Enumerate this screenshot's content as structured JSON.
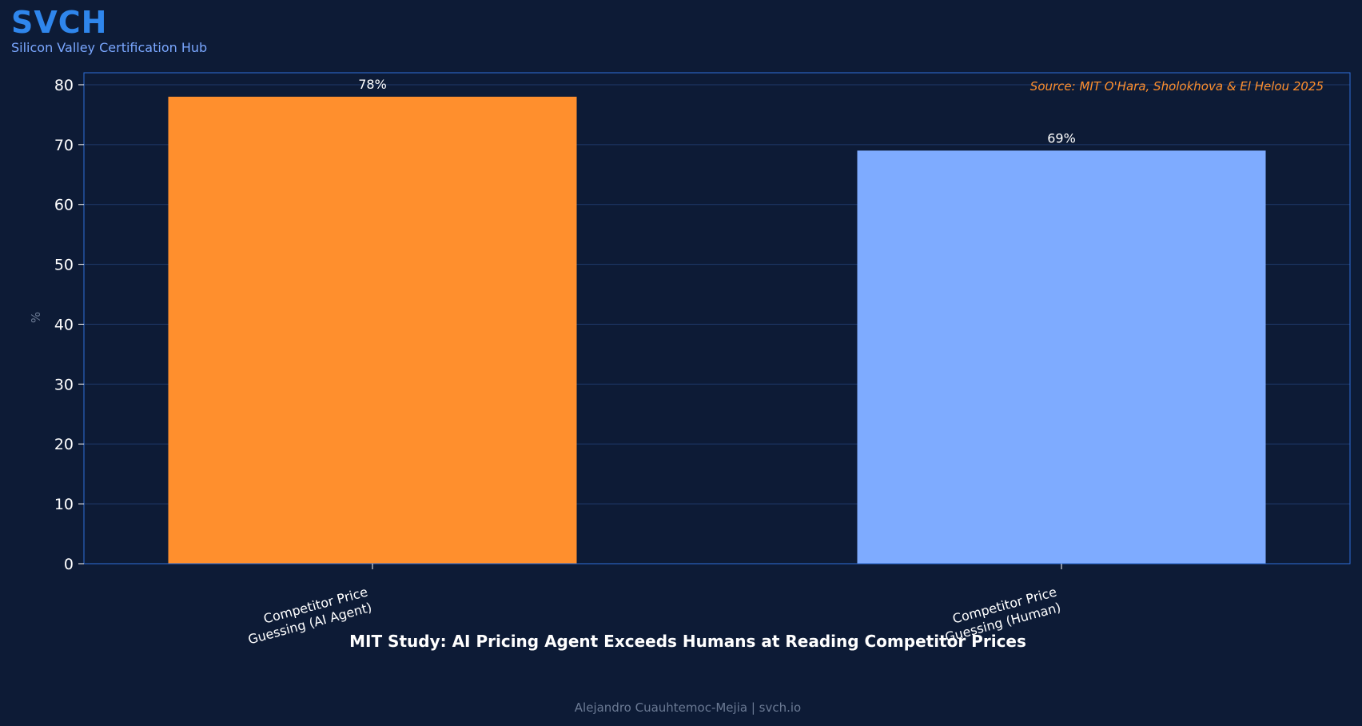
{
  "brand": {
    "name": "SVCH",
    "subtitle": "Silicon Valley Certification Hub"
  },
  "footer": {
    "credit": "Alejandro Cuauhtemoc-Mejia  |  svch.io"
  },
  "colors": {
    "background": "#0d1b36",
    "brand": "#2f86ec",
    "ai_bar": "#ff8f2d",
    "human_bar": "#7eabff",
    "source": "#ff8f2d",
    "axis_frame": "#2f6fdb"
  },
  "chart_data": {
    "type": "bar",
    "title": "MIT Study: AI Pricing Agent Exceeds Humans at Reading Competitor Prices",
    "xlabel": "",
    "ylabel": "%",
    "ylim": [
      0,
      82
    ],
    "yticks": [
      0,
      10,
      20,
      30,
      40,
      50,
      60,
      70,
      80
    ],
    "grid": true,
    "categories": [
      [
        "Competitor Price",
        "Guessing (AI Agent)"
      ],
      [
        "Competitor Price",
        "Guessing (Human)"
      ]
    ],
    "values": [
      78,
      69
    ],
    "value_labels": [
      "78%",
      "69%"
    ],
    "bar_colors": [
      "#ff8f2d",
      "#7eabff"
    ],
    "annotation": "Source: MIT O'Hara, Sholokhova & El Helou 2025"
  }
}
